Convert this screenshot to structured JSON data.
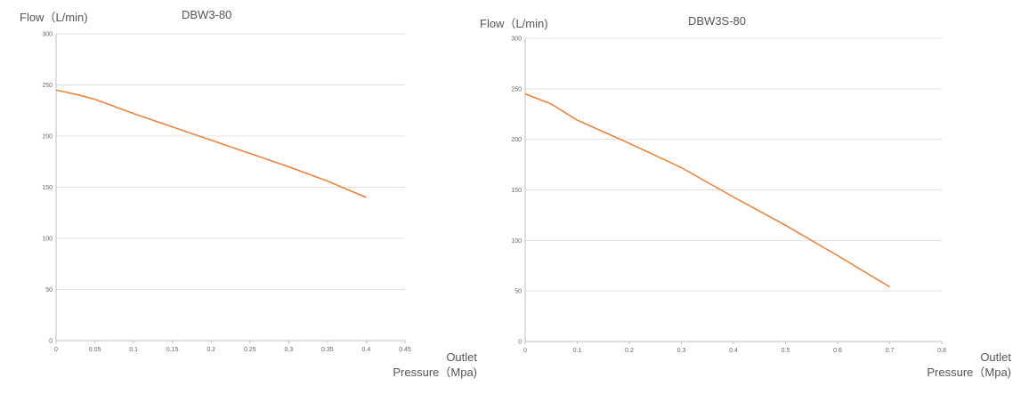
{
  "chart_data": [
    {
      "type": "line",
      "title": "DBW3-80",
      "ylabel": "Flow（L/min)",
      "xlabel_line1": "Outlet",
      "xlabel_line2": "Pressure（Mpa)",
      "xlim": [
        0,
        0.45
      ],
      "ylim": [
        0,
        300
      ],
      "x_ticks": [
        "0",
        "0.05",
        "0.1",
        "0.15",
        "0.2",
        "0.25",
        "0.3",
        "0.35",
        "0.4",
        "0.45"
      ],
      "y_ticks": [
        "0",
        "50",
        "100",
        "150",
        "200",
        "250",
        "300"
      ],
      "grid": true,
      "color": "#ED7D31",
      "series": [
        {
          "x": [
            0,
            0.025,
            0.05,
            0.1,
            0.15,
            0.2,
            0.25,
            0.3,
            0.35,
            0.4
          ],
          "y": [
            245,
            241,
            236,
            222,
            209,
            196,
            183,
            170,
            156,
            140
          ]
        }
      ]
    },
    {
      "type": "line",
      "title": "DBW3S-80",
      "ylabel": "Flow（L/min)",
      "xlabel_line1": "Outlet",
      "xlabel_line2": "Pressure（Mpa)",
      "xlim": [
        0,
        0.8
      ],
      "ylim": [
        0,
        300
      ],
      "x_ticks": [
        "0",
        "0.1",
        "0.2",
        "0.3",
        "0.4",
        "0.5",
        "0.6",
        "0.7",
        "0.8"
      ],
      "y_ticks": [
        "0",
        "50",
        "100",
        "150",
        "200",
        "250",
        "300"
      ],
      "grid": true,
      "color": "#ED7D31",
      "series": [
        {
          "x": [
            0,
            0.05,
            0.1,
            0.2,
            0.3,
            0.4,
            0.5,
            0.6,
            0.7
          ],
          "y": [
            245,
            235,
            219,
            196,
            172,
            143,
            115,
            85,
            54
          ]
        }
      ]
    }
  ]
}
